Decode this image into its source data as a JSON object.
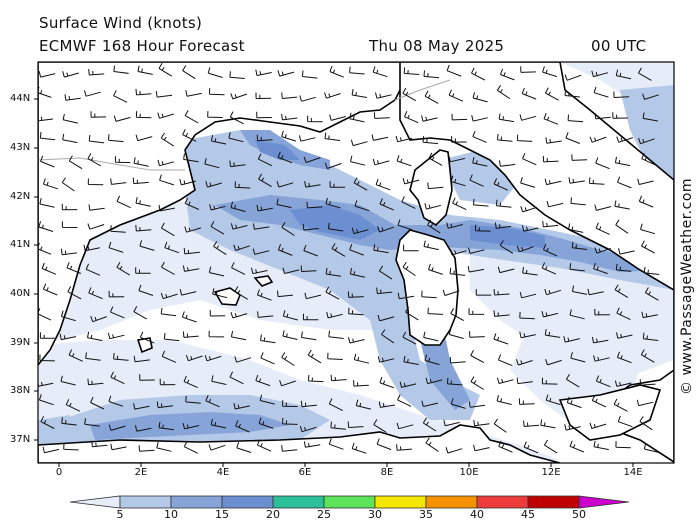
{
  "header": {
    "title": "Surface Wind (knots)",
    "model": "ECMWF 168 Hour Forecast",
    "date": "Thu 08 May 2025",
    "time": "00 UTC"
  },
  "credit": "© www.PassageWeather.com",
  "axes": {
    "lat_labels": [
      "44N",
      "43N",
      "42N",
      "41N",
      "40N",
      "39N",
      "38N",
      "37N"
    ],
    "lon_labels": [
      "0",
      "2E",
      "4E",
      "6E",
      "8E",
      "10E",
      "12E",
      "14E"
    ],
    "lat_range": [
      36.5,
      44.8
    ],
    "lon_range": [
      -0.5,
      15.0
    ]
  },
  "colorbar": {
    "labels": [
      "5",
      "10",
      "15",
      "20",
      "25",
      "30",
      "35",
      "40",
      "45",
      "50"
    ],
    "colors": [
      "#e6ecf8",
      "#b4c8e8",
      "#86a4d8",
      "#6b8fd1",
      "#2bbf9a",
      "#5ce35a",
      "#f5e600",
      "#f59200",
      "#ee3b3b",
      "#c00000",
      "#cc00cc"
    ]
  },
  "legend_colors": {
    "land": "#ffffff",
    "sea_calm": "#ffffff",
    "border": "#000000",
    "country_border": "#aaaaaa"
  }
}
